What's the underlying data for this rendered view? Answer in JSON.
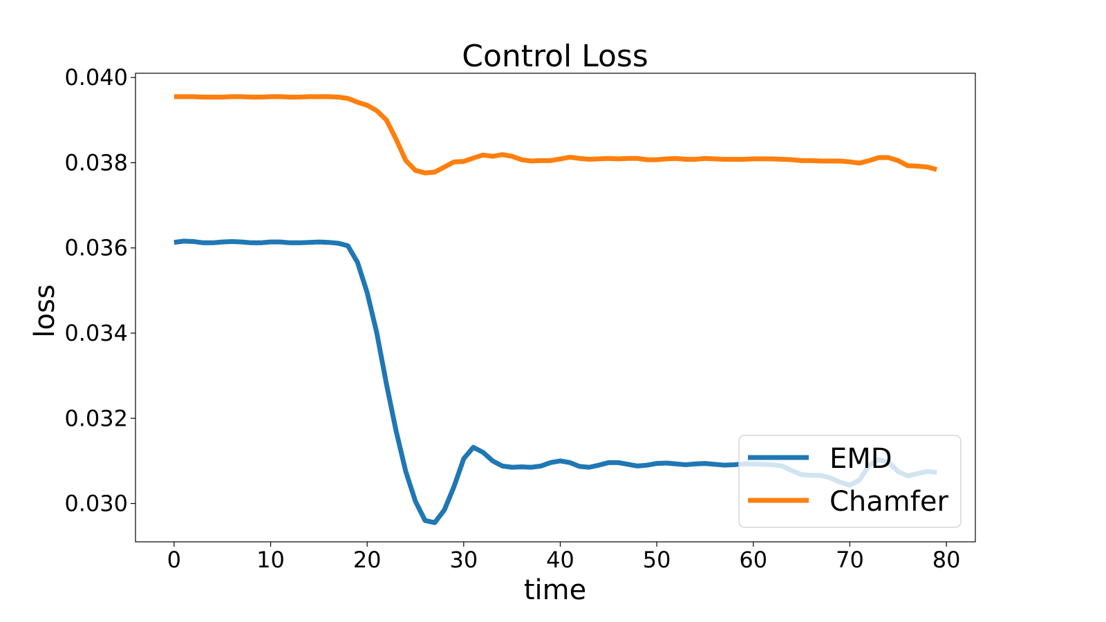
{
  "chart_data": {
    "type": "line",
    "title": "Control Loss",
    "xlabel": "time",
    "ylabel": "loss",
    "xlim": [
      -4,
      83
    ],
    "ylim": [
      0.0291,
      0.0401
    ],
    "xticks": [
      0,
      10,
      20,
      30,
      40,
      50,
      60,
      70,
      80
    ],
    "xtick_labels": [
      "0",
      "10",
      "20",
      "30",
      "40",
      "50",
      "60",
      "70",
      "80"
    ],
    "yticks": [
      0.03,
      0.032,
      0.034,
      0.036,
      0.038,
      0.04
    ],
    "ytick_labels": [
      "0.030",
      "0.032",
      "0.034",
      "0.036",
      "0.038",
      "0.040"
    ],
    "grid": false,
    "legend_position": "lower-right",
    "x": [
      0,
      1,
      2,
      3,
      4,
      5,
      6,
      7,
      8,
      9,
      10,
      11,
      12,
      13,
      14,
      15,
      16,
      17,
      18,
      19,
      20,
      21,
      22,
      23,
      24,
      25,
      26,
      27,
      28,
      29,
      30,
      31,
      32,
      33,
      34,
      35,
      36,
      37,
      38,
      39,
      40,
      41,
      42,
      43,
      44,
      45,
      46,
      47,
      48,
      49,
      50,
      51,
      52,
      53,
      54,
      55,
      56,
      57,
      58,
      59,
      60,
      61,
      62,
      63,
      64,
      65,
      66,
      67,
      68,
      69,
      70,
      71,
      72,
      73,
      74,
      75,
      76,
      77,
      78,
      79
    ],
    "series": [
      {
        "name": "EMD",
        "color": "#1f77b4",
        "values": [
          0.03613,
          0.03616,
          0.03615,
          0.03612,
          0.03612,
          0.03614,
          0.03615,
          0.03614,
          0.03612,
          0.03612,
          0.03614,
          0.03614,
          0.03612,
          0.03612,
          0.03613,
          0.03614,
          0.03613,
          0.03611,
          0.03605,
          0.03566,
          0.03495,
          0.034,
          0.0328,
          0.0317,
          0.03075,
          0.03005,
          0.0296,
          0.02955,
          0.02985,
          0.0304,
          0.03105,
          0.03132,
          0.0312,
          0.031,
          0.03088,
          0.03085,
          0.03086,
          0.03085,
          0.03088,
          0.03096,
          0.031,
          0.03096,
          0.03087,
          0.03085,
          0.0309,
          0.03096,
          0.03096,
          0.03092,
          0.03088,
          0.0309,
          0.03094,
          0.03095,
          0.03093,
          0.03091,
          0.03093,
          0.03094,
          0.03092,
          0.0309,
          0.03091,
          0.03093,
          0.03093,
          0.03092,
          0.03091,
          0.03088,
          0.03077,
          0.03068,
          0.03066,
          0.03066,
          0.0306,
          0.0305,
          0.03043,
          0.03055,
          0.0309,
          0.03103,
          0.03097,
          0.03075,
          0.03065,
          0.0307,
          0.03075,
          0.03073
        ]
      },
      {
        "name": "Chamfer",
        "color": "#ff7f0e",
        "values": [
          0.03955,
          0.03955,
          0.03955,
          0.03954,
          0.03954,
          0.03954,
          0.03955,
          0.03955,
          0.03954,
          0.03954,
          0.03955,
          0.03955,
          0.03954,
          0.03954,
          0.03955,
          0.03955,
          0.03955,
          0.03954,
          0.03951,
          0.03942,
          0.03935,
          0.03922,
          0.039,
          0.03855,
          0.03805,
          0.03782,
          0.03776,
          0.03778,
          0.0379,
          0.03802,
          0.03803,
          0.03811,
          0.03818,
          0.03815,
          0.03819,
          0.03815,
          0.03807,
          0.03804,
          0.03805,
          0.03805,
          0.03809,
          0.03813,
          0.0381,
          0.03808,
          0.03809,
          0.0381,
          0.03809,
          0.0381,
          0.0381,
          0.03807,
          0.03807,
          0.03809,
          0.0381,
          0.03808,
          0.03808,
          0.0381,
          0.03809,
          0.03808,
          0.03808,
          0.03808,
          0.03809,
          0.03809,
          0.03809,
          0.03808,
          0.03807,
          0.03805,
          0.03805,
          0.03804,
          0.03804,
          0.03804,
          0.03802,
          0.03799,
          0.03805,
          0.03812,
          0.03812,
          0.03805,
          0.03793,
          0.03792,
          0.0379,
          0.03784
        ]
      }
    ]
  }
}
